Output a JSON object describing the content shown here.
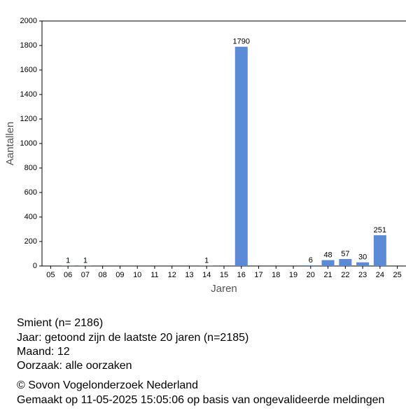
{
  "chart_data": {
    "type": "bar",
    "x_label": "Jaren",
    "y_label": "Aantallen",
    "categories": [
      "05",
      "06",
      "07",
      "08",
      "09",
      "10",
      "11",
      "12",
      "13",
      "14",
      "15",
      "16",
      "17",
      "18",
      "19",
      "20",
      "21",
      "22",
      "23",
      "24",
      "25"
    ],
    "values": [
      null,
      1,
      1,
      null,
      null,
      null,
      null,
      null,
      null,
      1,
      null,
      1790,
      null,
      null,
      null,
      6,
      48,
      57,
      30,
      251,
      null
    ],
    "color": "#5b8bd6",
    "ylim": [
      0,
      2000
    ],
    "yticks": [
      0,
      200,
      400,
      600,
      800,
      1000,
      1200,
      1400,
      1600,
      1800,
      2000
    ]
  },
  "info": {
    "species": "Smient  (n= 2186)",
    "year": "Jaar: getoond zijn de laatste 20 jaren (n=2185)",
    "month": "Maand: 12",
    "cause": "Oorzaak: alle oorzaken",
    "copyright": "© Sovon Vogelonderzoek Nederland",
    "created": "Gemaakt op 11-05-2025 15:05:06 op basis van ongevalideerde meldingen"
  }
}
